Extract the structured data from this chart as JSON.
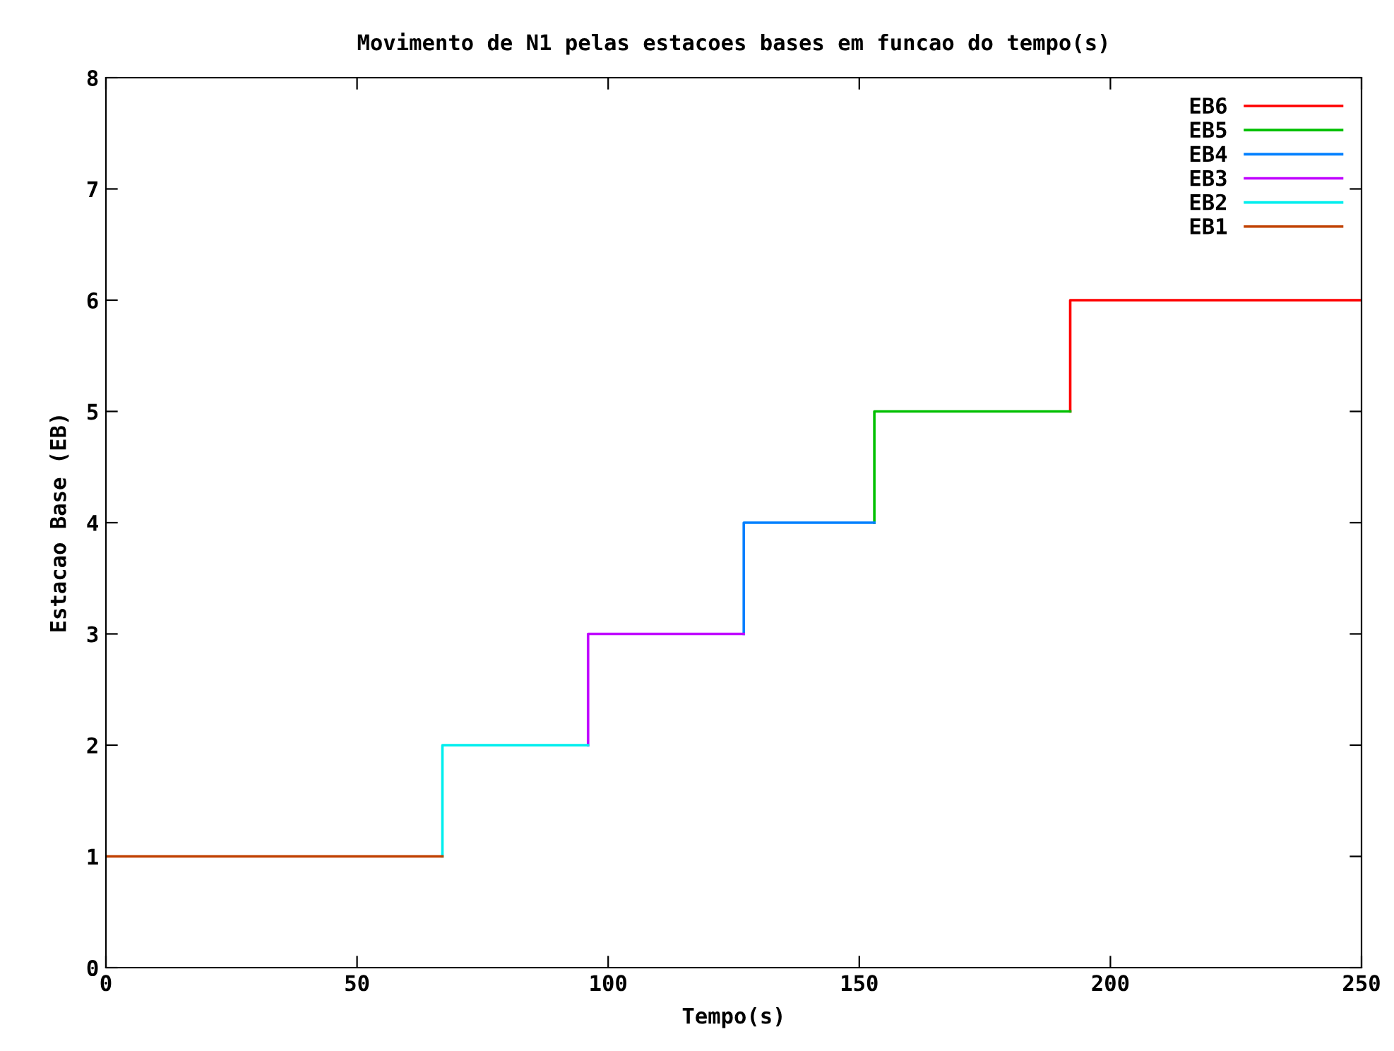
{
  "chart_data": {
    "type": "line",
    "title": "Movimento de N1 pelas estacoes bases em funcao do tempo(s)",
    "xlabel": "Tempo(s)",
    "ylabel": "Estacao Base (EB)",
    "xlim": [
      0,
      250
    ],
    "xticks": [
      0,
      50,
      100,
      150,
      200,
      250
    ],
    "ylim": [
      0,
      8
    ],
    "yticks": [
      0,
      1,
      2,
      3,
      4,
      5,
      6,
      7,
      8
    ],
    "grid": false,
    "legend": "top right",
    "marker": "none",
    "line_style": "solid",
    "series": [
      {
        "name": "EB6",
        "color": "#ff0000",
        "x": [
          192,
          192,
          250
        ],
        "values": [
          5,
          6,
          6
        ]
      },
      {
        "name": "EB5",
        "color": "#00c000",
        "x": [
          153,
          153,
          192
        ],
        "values": [
          4,
          5,
          5
        ]
      },
      {
        "name": "EB4",
        "color": "#0080ff",
        "x": [
          127,
          127,
          153
        ],
        "values": [
          3,
          4,
          4
        ]
      },
      {
        "name": "EB3",
        "color": "#c000ff",
        "x": [
          96,
          96,
          127
        ],
        "values": [
          2,
          3,
          3
        ]
      },
      {
        "name": "EB2",
        "color": "#00eeee",
        "x": [
          67,
          67,
          96
        ],
        "values": [
          1,
          2,
          2
        ]
      },
      {
        "name": "EB1",
        "color": "#c04000",
        "x": [
          0,
          67
        ],
        "values": [
          1,
          1
        ]
      }
    ]
  }
}
